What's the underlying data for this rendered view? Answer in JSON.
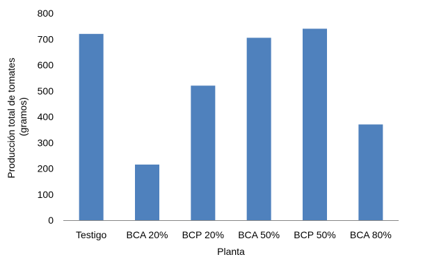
{
  "chart_data": {
    "type": "bar",
    "categories": [
      "Testigo",
      "BCA 20%",
      "BCP 20%",
      "BCA 50%",
      "BCP 50%",
      "BCA 80%"
    ],
    "values": [
      720,
      215,
      520,
      705,
      740,
      370
    ],
    "title": "",
    "xlabel": "Planta",
    "ylabel": [
      "Producción total de tomates",
      "(gramos)"
    ],
    "ylim": [
      0,
      800
    ],
    "yticks": [
      0,
      100,
      200,
      300,
      400,
      500,
      600,
      700,
      800
    ],
    "grid": false,
    "legend": "none",
    "bar_color": "#4F81BD"
  }
}
